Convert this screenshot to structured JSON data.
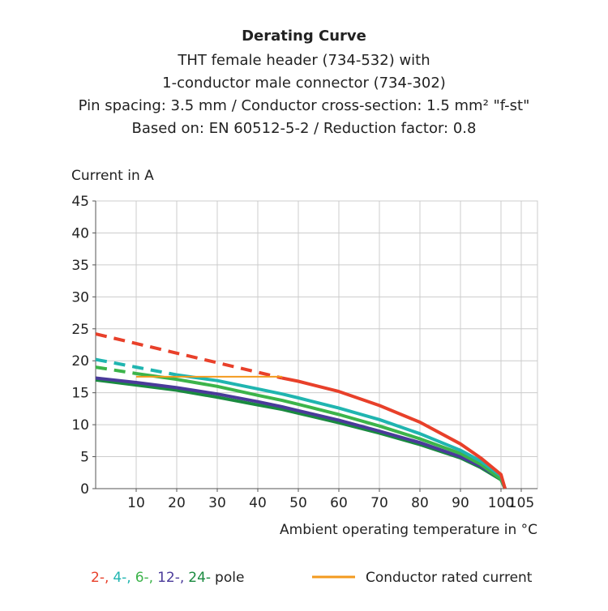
{
  "chart_data": {
    "type": "line",
    "title": "Derating Curve",
    "subtitle": [
      "THT female header (734-532) with",
      "1-conductor male connector (734-302)",
      "Pin spacing: 3.5 mm / Conductor cross-section: 1.5 mm² \"f-st\"",
      "Based on: EN 60512-5-2 / Reduction factor: 0.8"
    ],
    "y_label": "Current in A",
    "x_label": "Ambient operating temperature in °C",
    "x": [
      0,
      10,
      20,
      30,
      40,
      46,
      50,
      60,
      70,
      80,
      90,
      95,
      100,
      101
    ],
    "xlim": [
      0,
      109
    ],
    "ylim": [
      0,
      45
    ],
    "xticks": [
      10,
      20,
      30,
      40,
      50,
      60,
      70,
      80,
      90,
      100,
      105
    ],
    "yticks": [
      0,
      5,
      10,
      15,
      20,
      25,
      30,
      35,
      40,
      45
    ],
    "grid": true,
    "legend_label": "pole",
    "series": [
      {
        "name": "2-,",
        "color": "#e8402a",
        "dashed_values": [
          24.2,
          22.7,
          21.2,
          19.7,
          18.2,
          17.3,
          null,
          null,
          null,
          null,
          null,
          null,
          null,
          null
        ],
        "values": [
          null,
          null,
          null,
          null,
          null,
          17.3,
          16.8,
          15.2,
          13.0,
          10.4,
          7.0,
          4.8,
          2.2,
          0
        ]
      },
      {
        "name": "4-,",
        "color": "#20b5b0",
        "dashed_values": [
          20.2,
          19.0,
          17.8,
          null,
          null,
          null,
          null,
          null,
          null,
          null,
          null,
          null,
          null,
          null
        ],
        "values": [
          null,
          null,
          17.8,
          16.9,
          15.6,
          14.8,
          14.2,
          12.6,
          10.8,
          8.6,
          6.0,
          4.3,
          2.0,
          0
        ]
      },
      {
        "name": "6-,",
        "color": "#3cb44a",
        "dashed_values": [
          19.0,
          18.0,
          null,
          null,
          null,
          null,
          null,
          null,
          null,
          null,
          null,
          null,
          null,
          null
        ],
        "values": [
          null,
          18.0,
          17.1,
          16.0,
          14.6,
          13.8,
          13.2,
          11.6,
          9.8,
          7.8,
          5.5,
          3.8,
          1.5,
          0
        ]
      },
      {
        "name": "12-,",
        "color": "#4a3a9a",
        "values": [
          17.3,
          16.6,
          15.8,
          14.8,
          13.6,
          12.8,
          12.2,
          10.7,
          9.0,
          7.2,
          5.0,
          3.5,
          1.6,
          0
        ]
      },
      {
        "name": "24-",
        "color": "#1a8a40",
        "values": [
          17.0,
          16.2,
          15.4,
          14.3,
          13.1,
          12.4,
          11.8,
          10.3,
          8.7,
          6.9,
          4.8,
          3.3,
          1.4,
          0
        ]
      }
    ],
    "rated_current": {
      "name": "Conductor rated current",
      "color": "#f39a1e",
      "values": [
        null,
        17.5,
        17.5,
        17.5,
        17.5,
        17.5,
        null,
        null,
        null,
        null,
        null,
        null,
        null,
        null
      ]
    }
  }
}
